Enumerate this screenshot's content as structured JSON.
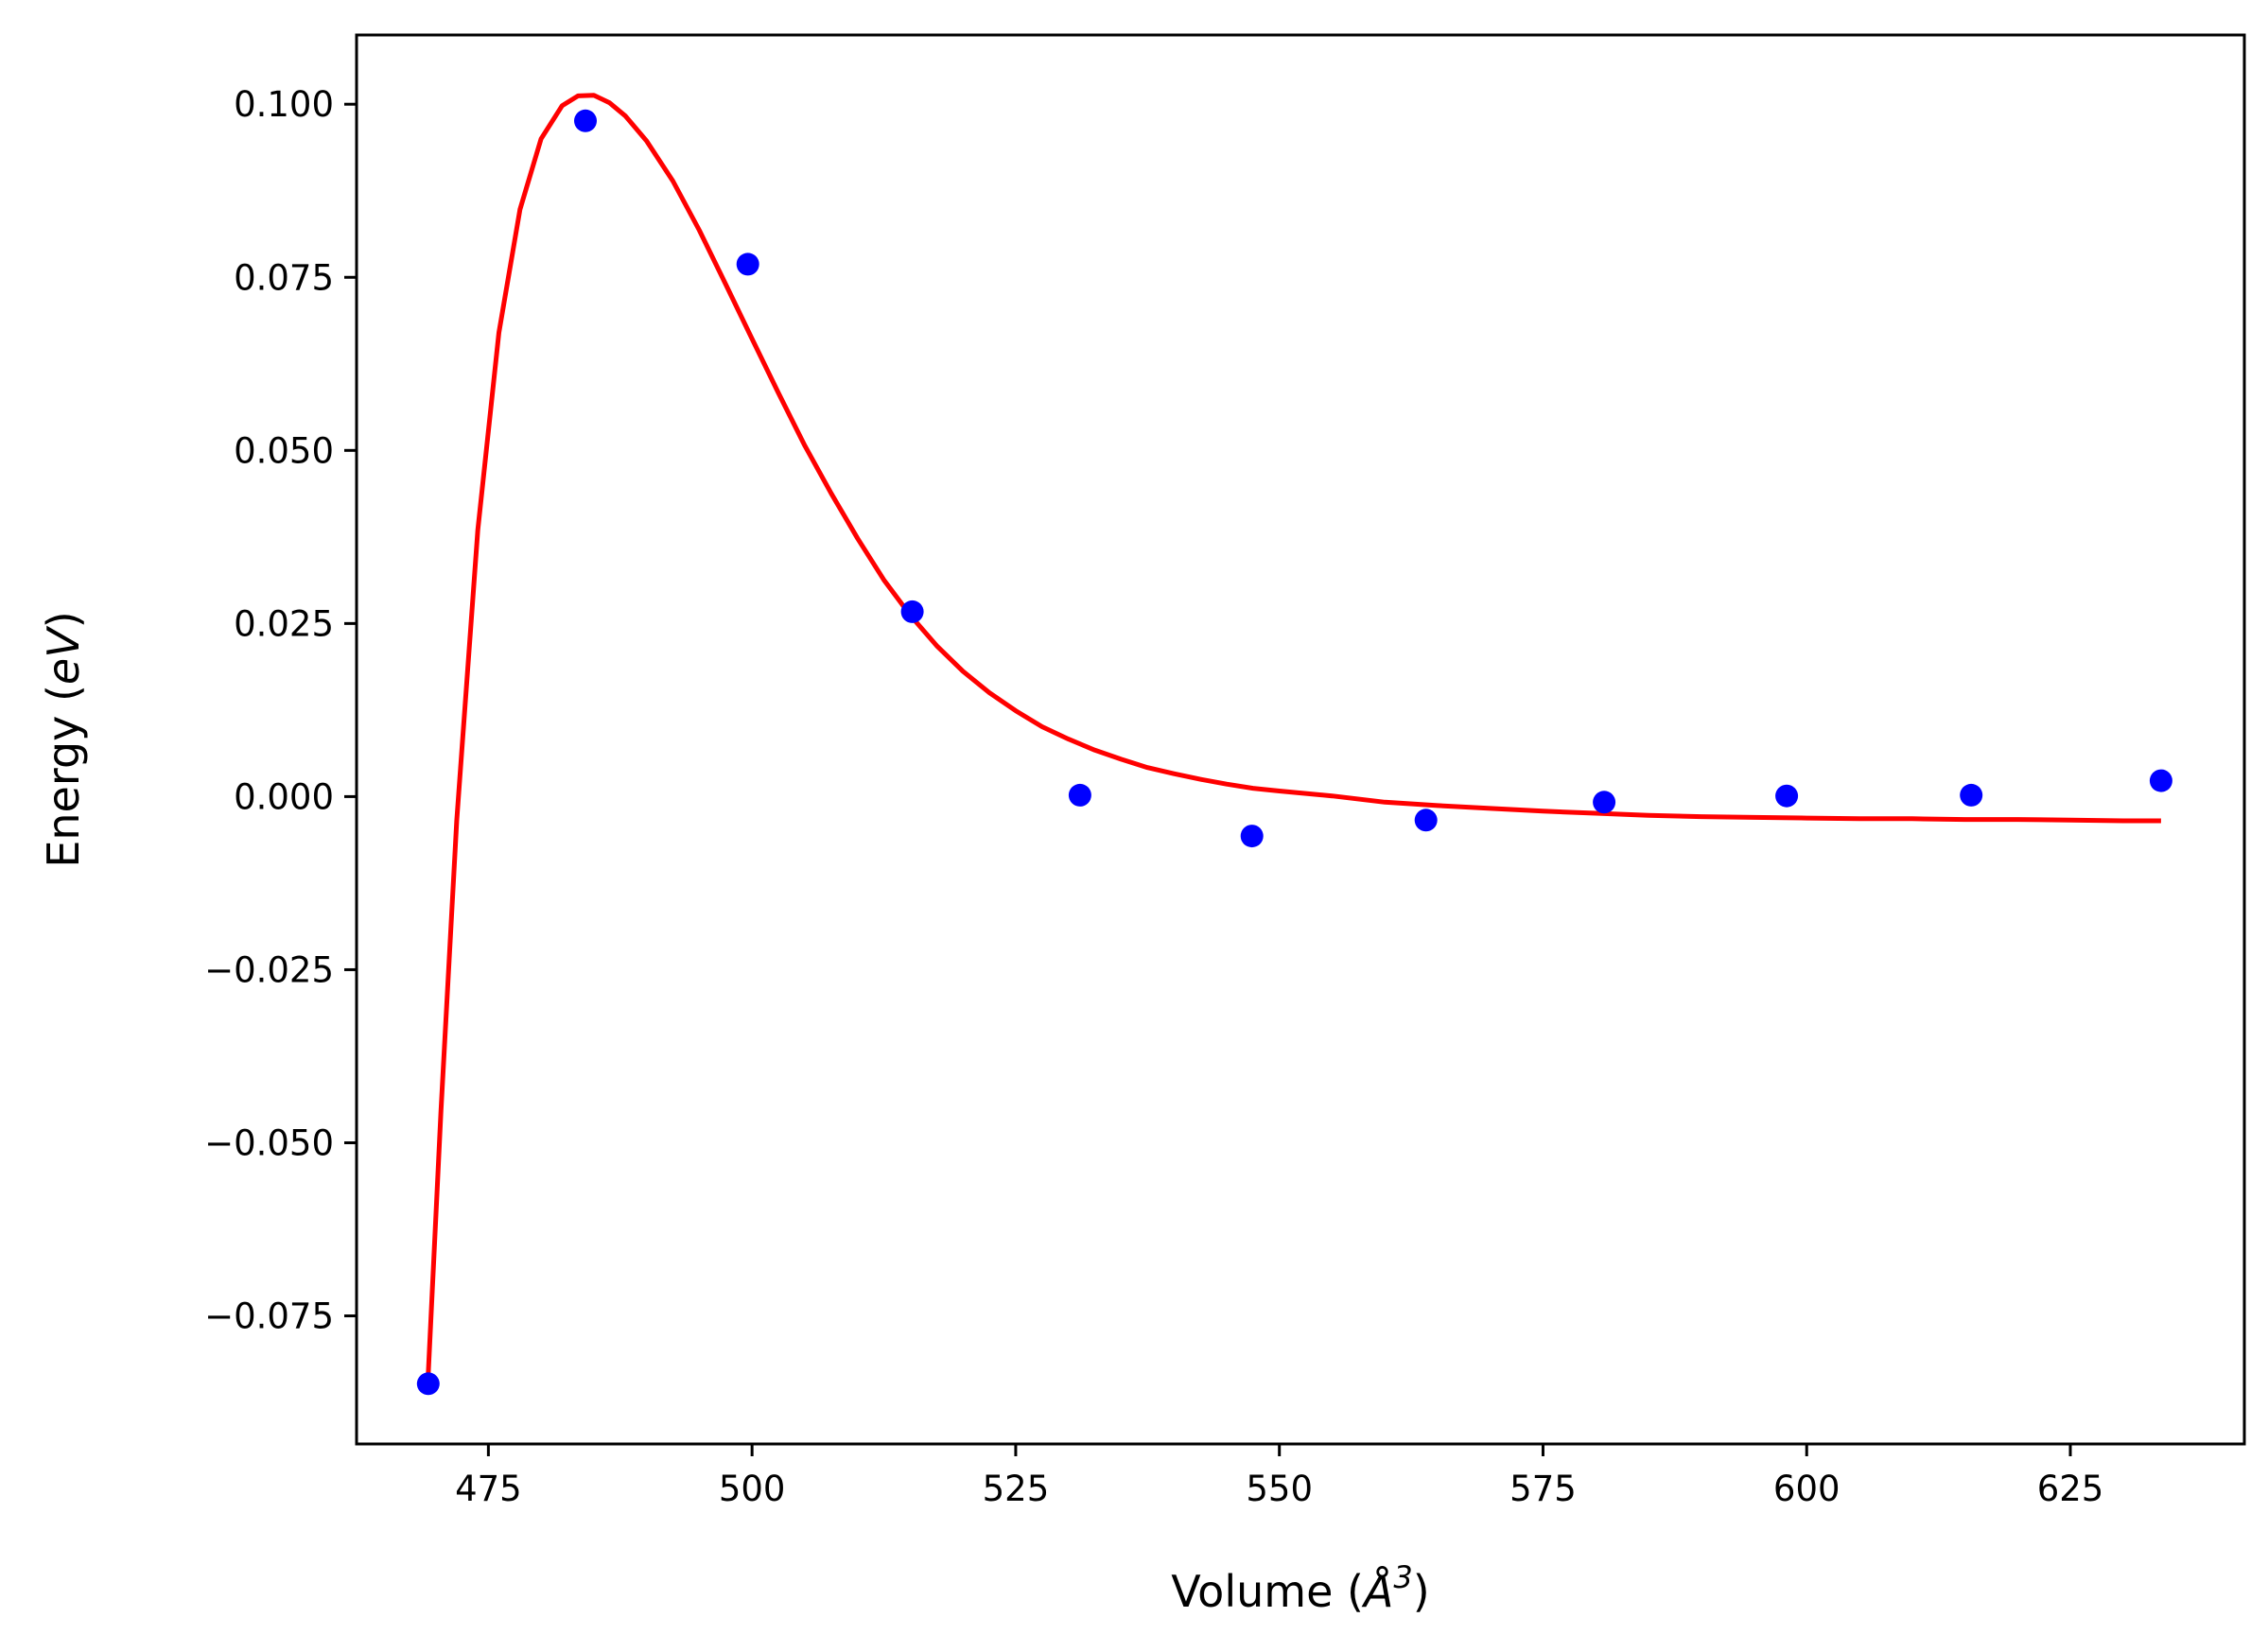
{
  "chart_data": {
    "type": "scatter",
    "title": "",
    "xlabel_prefix": "Volume (",
    "xlabel_symbol": "Å",
    "xlabel_exponent": "3",
    "xlabel_suffix": ")",
    "ylabel_prefix": "Energy (",
    "ylabel_unit": "eV",
    "ylabel_suffix": ")",
    "xlim": [
      462.5,
      641.5
    ],
    "ylim": [
      -0.0935,
      0.11
    ],
    "xticks": [
      475,
      500,
      525,
      550,
      575,
      600,
      625
    ],
    "xtick_labels": [
      "475",
      "500",
      "525",
      "550",
      "575",
      "600",
      "625"
    ],
    "yticks": [
      -0.075,
      -0.05,
      -0.025,
      0.0,
      0.025,
      0.05,
      0.075,
      0.1
    ],
    "ytick_labels": [
      "−0.075",
      "−0.050",
      "−0.025",
      "0.000",
      "0.025",
      "0.050",
      "0.075",
      "0.100"
    ],
    "grid": false,
    "series": [
      {
        "kind": "points",
        "color": "#0000ff",
        "x": [
          469.3,
          484.2,
          499.6,
          515.2,
          531.1,
          547.4,
          563.9,
          580.8,
          598.1,
          615.6,
          633.6
        ],
        "y": [
          -0.0848,
          0.0976,
          0.0769,
          0.0267,
          0.0002,
          -0.0057,
          -0.0034,
          -0.0008,
          0.0001,
          0.0002,
          0.0023
        ]
      },
      {
        "kind": "fit-curve",
        "color": "#ff0000",
        "x": [
          469.3,
          470.5,
          472.0,
          474.0,
          476.0,
          478.0,
          480.0,
          482.0,
          483.5,
          485.0,
          486.5,
          488.0,
          490.0,
          492.5,
          495.0,
          497.5,
          500.0,
          502.5,
          505.0,
          507.5,
          510.0,
          512.5,
          515.0,
          517.5,
          520.0,
          522.5,
          525.0,
          527.5,
          530.0,
          532.5,
          535.0,
          537.5,
          540.0,
          542.5,
          545.0,
          547.5,
          550.0,
          555.0,
          560.0,
          565.0,
          570.0,
          575.0,
          580.0,
          585.0,
          590.0,
          595.0,
          600.0,
          605.0,
          610.0,
          615.0,
          620.0,
          625.0,
          630.0,
          633.6
        ],
        "y": [
          -0.0834,
          -0.0455,
          -0.0035,
          0.0385,
          0.067,
          0.0848,
          0.095,
          0.0998,
          0.1012,
          0.1013,
          0.1002,
          0.0983,
          0.0947,
          0.0889,
          0.0818,
          0.074,
          0.0661,
          0.0583,
          0.0507,
          0.0438,
          0.0373,
          0.0313,
          0.0262,
          0.0218,
          0.0181,
          0.015,
          0.0124,
          0.0101,
          0.0083,
          0.0067,
          0.0054,
          0.0042,
          0.0033,
          0.0025,
          0.0018,
          0.0012,
          0.0008,
          0.0001,
          -0.0008,
          -0.0013,
          -0.0017,
          -0.0021,
          -0.0024,
          -0.0027,
          -0.0029,
          -0.003,
          -0.0031,
          -0.0032,
          -0.0032,
          -0.0033,
          -0.0033,
          -0.0034,
          -0.0035,
          -0.0035
        ]
      }
    ]
  }
}
